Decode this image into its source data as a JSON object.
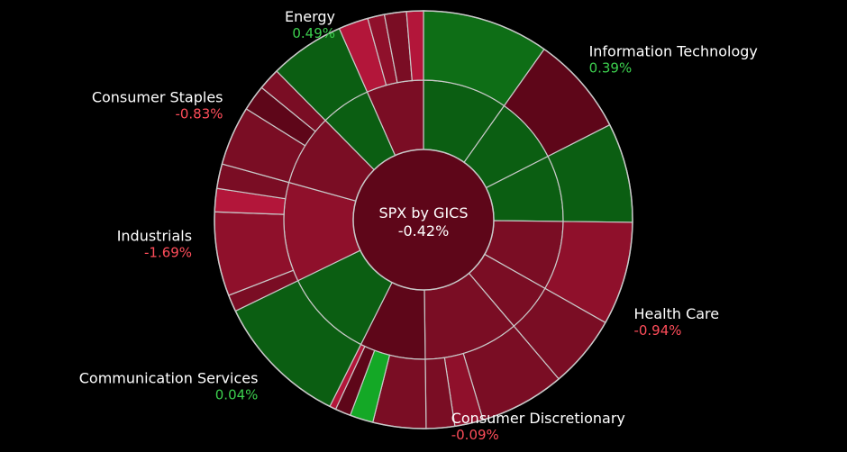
{
  "chart_data": {
    "type": "sunburst",
    "title": "SPX by GICS",
    "total_change": "-0.42%",
    "colors": {
      "dark_green": "#0b5e12",
      "mid_green": "#0e6e16",
      "bright_green": "#14a826",
      "dark_red": "#5e0619",
      "mid_red": "#7a0d24",
      "light_red": "#8f102b",
      "bright_red": "#b3163a",
      "stroke": "#c9c9c9",
      "background": "#000000"
    },
    "sectors": [
      {
        "name": "Information Technology",
        "change": "0.39%",
        "weight": 25.2,
        "sign": "pos",
        "industries": [
          {
            "weight": 9.8,
            "color": "dark_green",
            "stocks": [
              {
                "weight": 9.8,
                "color": "mid_green"
              }
            ]
          },
          {
            "weight": 7.7,
            "color": "dark_green",
            "stocks": [
              {
                "weight": 7.7,
                "color": "dark_red"
              }
            ]
          },
          {
            "weight": 7.7,
            "color": "dark_green",
            "stocks": [
              {
                "weight": 7.7,
                "color": "dark_green"
              }
            ]
          }
        ]
      },
      {
        "name": "Health Care",
        "change": "-0.94%",
        "weight": 13.6,
        "sign": "neg",
        "industries": [
          {
            "weight": 8.0,
            "color": "mid_red",
            "stocks": [
              {
                "weight": 8.0,
                "color": "light_red"
              }
            ]
          },
          {
            "weight": 5.6,
            "color": "mid_red",
            "stocks": [
              {
                "weight": 5.6,
                "color": "mid_red"
              }
            ]
          }
        ]
      },
      {
        "name": "Consumer Discretionary",
        "change": "-0.09%",
        "weight": 18.6,
        "sign": "neg",
        "industries": [
          {
            "weight": 11.0,
            "color": "mid_red",
            "stocks": [
              {
                "weight": 6.6,
                "color": "mid_red"
              },
              {
                "weight": 2.2,
                "color": "light_red"
              },
              {
                "weight": 2.2,
                "color": "mid_red"
              }
            ]
          },
          {
            "weight": 7.6,
            "color": "dark_red",
            "stocks": [
              {
                "weight": 4.1,
                "color": "mid_red"
              },
              {
                "weight": 1.8,
                "color": "bright_green"
              },
              {
                "weight": 1.2,
                "color": "dark_red"
              },
              {
                "weight": 0.5,
                "color": "bright_red"
              }
            ]
          }
        ]
      },
      {
        "name": "Communication Services",
        "change": "0.04%",
        "weight": 10.4,
        "sign": "pos",
        "industries": [
          {
            "weight": 10.4,
            "color": "dark_green",
            "stocks": [
              {
                "weight": 10.4,
                "color": "dark_green"
              }
            ]
          }
        ]
      },
      {
        "name": "Industrials",
        "change": "-1.69%",
        "weight": 11.5,
        "sign": "neg",
        "industries": [
          {
            "weight": 11.5,
            "color": "light_red",
            "stocks": [
              {
                "weight": 1.3,
                "color": "mid_red"
              },
              {
                "weight": 6.5,
                "color": "light_red"
              },
              {
                "weight": 1.8,
                "color": "bright_red"
              },
              {
                "weight": 1.9,
                "color": "mid_red"
              }
            ]
          }
        ]
      },
      {
        "name": "Consumer Staples",
        "change": "-0.83%",
        "weight": 8.3,
        "sign": "neg",
        "industries": [
          {
            "weight": 8.3,
            "color": "mid_red",
            "stocks": [
              {
                "weight": 4.6,
                "color": "mid_red"
              },
              {
                "weight": 2.0,
                "color": "dark_red"
              },
              {
                "weight": 1.7,
                "color": "mid_red"
              }
            ]
          }
        ]
      },
      {
        "name": "Energy",
        "change": "0.49%",
        "weight": 12.4,
        "sign": "pos",
        "industries": [
          {
            "weight": 5.8,
            "color": "dark_green",
            "stocks": [
              {
                "weight": 5.8,
                "color": "dark_green"
              }
            ]
          },
          {
            "weight": 6.6,
            "color": "mid_red",
            "stocks": [
              {
                "weight": 2.3,
                "color": "bright_red"
              },
              {
                "weight": 1.3,
                "color": "light_red"
              },
              {
                "weight": 1.7,
                "color": "mid_red"
              },
              {
                "weight": 1.3,
                "color": "bright_red"
              }
            ]
          }
        ]
      }
    ]
  }
}
